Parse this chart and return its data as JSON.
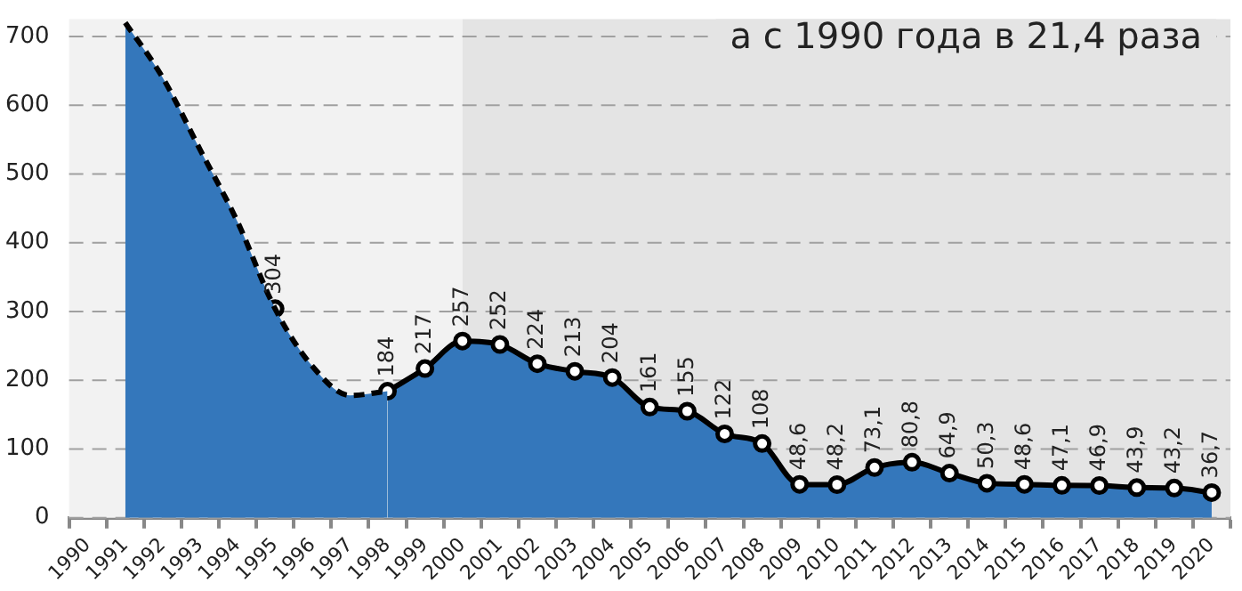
{
  "chart_data": {
    "type": "area",
    "categories": [
      "1990",
      "1991",
      "1992",
      "1993",
      "1994",
      "1995",
      "1996",
      "1997",
      "1998",
      "1999",
      "2000",
      "2001",
      "2002",
      "2003",
      "2004",
      "2005",
      "2006",
      "2007",
      "2008",
      "2009",
      "2010",
      "2011",
      "2012",
      "2013",
      "2014",
      "2015",
      "2016",
      "2017",
      "2018",
      "2019",
      "2020"
    ],
    "series": [
      {
        "color": "#3477bb",
        "line_style": "dashed",
        "marker": "none",
        "values": [
          null,
          720,
          640,
          535,
          430,
          304,
          220,
          178,
          184,
          null,
          null,
          null,
          null,
          null,
          null,
          null,
          null,
          null,
          null,
          null,
          null,
          null,
          null,
          null,
          null,
          null,
          null,
          null,
          null,
          null,
          null
        ]
      },
      {
        "type": "scatter",
        "color": "#ffffff",
        "marker": "circle",
        "values": [
          null,
          null,
          null,
          null,
          null,
          304,
          null,
          null,
          null,
          null,
          null,
          null,
          null,
          null,
          null,
          null,
          null,
          null,
          null,
          null,
          null,
          null,
          null,
          null,
          null,
          null,
          null,
          null,
          null,
          null,
          null
        ],
        "value_labels": [
          null,
          null,
          null,
          null,
          null,
          "304",
          null,
          null,
          null,
          null,
          null,
          null,
          null,
          null,
          null,
          null,
          null,
          null,
          null,
          null,
          null,
          null,
          null,
          null,
          null,
          null,
          null,
          null,
          null,
          null,
          null
        ]
      },
      {
        "color": "#3477bb",
        "line_style": "solid",
        "marker": "circle",
        "values": [
          null,
          null,
          null,
          null,
          null,
          null,
          null,
          null,
          184,
          217,
          257,
          252,
          224,
          213,
          204,
          161,
          155,
          122,
          108,
          48.6,
          48.2,
          73.1,
          80.8,
          64.9,
          50.3,
          48.6,
          47.1,
          46.9,
          43.9,
          43.2,
          36.7
        ],
        "value_labels": [
          null,
          null,
          null,
          null,
          null,
          null,
          null,
          null,
          "184",
          "217",
          "257",
          "252",
          "224",
          "213",
          "204",
          "161",
          "155",
          "122",
          "108",
          "48,6",
          "48,2",
          "73,1",
          "80,8",
          "64,9",
          "50,3",
          "48,6",
          "47,1",
          "46,9",
          "43,9",
          "43,2",
          "36,7"
        ]
      }
    ],
    "ylim": [
      0,
      725
    ],
    "yticks": [
      0,
      100,
      200,
      300,
      400,
      500,
      600,
      700
    ],
    "grid": "y",
    "legend": false,
    "bands": [
      {
        "axis": "x",
        "from": "1990",
        "to": "2000",
        "color": "#f2f2f2"
      },
      {
        "axis": "x",
        "from": "2000",
        "to": "2020",
        "color": "#e4e4e4"
      }
    ],
    "annotations": [
      "а с 1990 года в 21,4 раза"
    ]
  }
}
